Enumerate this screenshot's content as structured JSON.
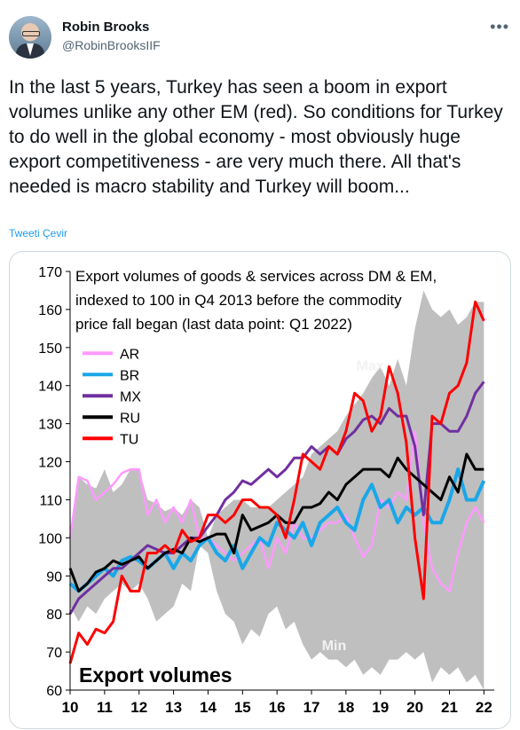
{
  "tweet": {
    "author_name": "Robin Brooks",
    "author_handle": "@RobinBrooksIIF",
    "more_icon": "more-icon",
    "text": "In the last 5 years, Turkey has seen a boom in export volumes unlike any other EM (red). So conditions for Turkey to do well in the global economy - most obviously huge export competitiveness - are very much there. All that's needed is macro stability and Turkey will boom...",
    "translate_label": "Tweeti Çevir"
  },
  "chart_data": {
    "type": "line",
    "title_lines": [
      "Export volumes of goods & services across DM & EM,",
      "indexed to 100 in Q4 2013  before the commodity",
      "price fall began (last data point: Q1 2022)"
    ],
    "bottom_label": "Export volumes",
    "band_labels": {
      "max": "Max",
      "min": "Min"
    },
    "ylim": [
      60,
      170
    ],
    "yticks": [
      60,
      70,
      80,
      90,
      100,
      110,
      120,
      130,
      140,
      150,
      160,
      170
    ],
    "xlim": [
      2010,
      2022.3
    ],
    "xticks": [
      {
        "v": 2010,
        "label": "10"
      },
      {
        "v": 2011,
        "label": "11"
      },
      {
        "v": 2012,
        "label": "12"
      },
      {
        "v": 2013,
        "label": "13"
      },
      {
        "v": 2014,
        "label": "14"
      },
      {
        "v": 2015,
        "label": "15"
      },
      {
        "v": 2016,
        "label": "16"
      },
      {
        "v": 2017,
        "label": "17"
      },
      {
        "v": 2018,
        "label": "18"
      },
      {
        "v": 2019,
        "label": "19"
      },
      {
        "v": 2020,
        "label": "20"
      },
      {
        "v": 2021,
        "label": "21"
      },
      {
        "v": 2022,
        "label": "22"
      }
    ],
    "colors": {
      "AR": "#ff99ff",
      "BR": "#1aa7e8",
      "MX": "#7030a0",
      "RU": "#000000",
      "TU": "#ff0000",
      "band": "#bfbfbf"
    },
    "band": {
      "x": [
        2010,
        2010.25,
        2010.5,
        2010.75,
        2011,
        2011.25,
        2011.5,
        2011.75,
        2012,
        2012.25,
        2012.5,
        2012.75,
        2013,
        2013.25,
        2013.5,
        2013.75,
        2014,
        2014.25,
        2014.5,
        2014.75,
        2015,
        2015.25,
        2015.5,
        2015.75,
        2016,
        2016.25,
        2016.5,
        2016.75,
        2017,
        2017.25,
        2017.5,
        2017.75,
        2018,
        2018.25,
        2018.5,
        2018.75,
        2019,
        2019.25,
        2019.5,
        2019.75,
        2020,
        2020.25,
        2020.5,
        2020.75,
        2021,
        2021.25,
        2021.5,
        2021.75,
        2022
      ],
      "max": [
        100,
        116,
        114,
        113,
        118,
        112,
        114,
        118,
        118,
        110,
        109,
        107,
        108,
        106,
        110,
        108,
        100,
        106,
        108,
        110,
        110,
        108,
        108,
        108,
        110,
        112,
        114,
        116,
        122,
        124,
        126,
        128,
        132,
        135,
        138,
        142,
        145,
        140,
        147,
        140,
        155,
        165,
        160,
        158,
        160,
        156,
        158,
        162,
        162
      ],
      "min": [
        82,
        78,
        82,
        80,
        84,
        86,
        88,
        86,
        88,
        84,
        78,
        80,
        82,
        88,
        86,
        98,
        96,
        86,
        80,
        78,
        72,
        76,
        74,
        80,
        82,
        76,
        78,
        72,
        68,
        70,
        68,
        68,
        66,
        68,
        64,
        66,
        64,
        68,
        68,
        70,
        68,
        70,
        62,
        66,
        64,
        66,
        62,
        64,
        60
      ]
    },
    "series": [
      {
        "name": "AR",
        "x": [
          2010,
          2010.25,
          2010.5,
          2010.75,
          2011,
          2011.25,
          2011.5,
          2011.75,
          2012,
          2012.25,
          2012.5,
          2012.75,
          2013,
          2013.25,
          2013.5,
          2013.75,
          2014,
          2014.25,
          2014.5,
          2014.75,
          2015,
          2015.25,
          2015.5,
          2015.75,
          2016,
          2016.25,
          2016.5,
          2016.75,
          2017,
          2017.25,
          2017.5,
          2017.75,
          2018,
          2018.25,
          2018.5,
          2018.75,
          2019,
          2019.25,
          2019.5,
          2019.75,
          2020,
          2020.25,
          2020.5,
          2020.75,
          2021,
          2021.25,
          2021.5,
          2021.75,
          2022
        ],
        "values": [
          100,
          116,
          115,
          110,
          112,
          114,
          117,
          118,
          118,
          106,
          110,
          104,
          108,
          104,
          110,
          100,
          100,
          98,
          96,
          94,
          96,
          98,
          100,
          92,
          100,
          96,
          104,
          100,
          100,
          102,
          104,
          104,
          106,
          100,
          95,
          98,
          110,
          108,
          112,
          110,
          128,
          104,
          92,
          88,
          86,
          96,
          104,
          108,
          104
        ]
      },
      {
        "name": "BR",
        "x": [
          2010,
          2010.25,
          2010.5,
          2010.75,
          2011,
          2011.25,
          2011.5,
          2011.75,
          2012,
          2012.25,
          2012.5,
          2012.75,
          2013,
          2013.25,
          2013.5,
          2013.75,
          2014,
          2014.25,
          2014.5,
          2014.75,
          2015,
          2015.25,
          2015.5,
          2015.75,
          2016,
          2016.25,
          2016.5,
          2016.75,
          2017,
          2017.25,
          2017.5,
          2017.75,
          2018,
          2018.25,
          2018.5,
          2018.75,
          2019,
          2019.25,
          2019.5,
          2019.75,
          2020,
          2020.25,
          2020.5,
          2020.75,
          2021,
          2021.25,
          2021.5,
          2021.75,
          2022
        ],
        "values": [
          88,
          86,
          88,
          90,
          92,
          90,
          94,
          95,
          94,
          92,
          94,
          96,
          92,
          96,
          94,
          98,
          100,
          96,
          94,
          98,
          92,
          96,
          100,
          98,
          104,
          102,
          100,
          104,
          98,
          104,
          106,
          108,
          104,
          102,
          110,
          114,
          108,
          110,
          104,
          108,
          106,
          108,
          104,
          104,
          110,
          118,
          110,
          110,
          115
        ]
      },
      {
        "name": "MX",
        "x": [
          2010,
          2010.25,
          2010.5,
          2010.75,
          2011,
          2011.25,
          2011.5,
          2011.75,
          2012,
          2012.25,
          2012.5,
          2012.75,
          2013,
          2013.25,
          2013.5,
          2013.75,
          2014,
          2014.25,
          2014.5,
          2014.75,
          2015,
          2015.25,
          2015.5,
          2015.75,
          2016,
          2016.25,
          2016.5,
          2016.75,
          2017,
          2017.25,
          2017.5,
          2017.75,
          2018,
          2018.25,
          2018.5,
          2018.75,
          2019,
          2019.25,
          2019.5,
          2019.75,
          2020,
          2020.25,
          2020.5,
          2020.75,
          2021,
          2021.25,
          2021.5,
          2021.75,
          2022
        ],
        "values": [
          80,
          84,
          86,
          88,
          90,
          92,
          92,
          94,
          96,
          98,
          97,
          96,
          96,
          98,
          100,
          100,
          103,
          106,
          110,
          112,
          115,
          114,
          116,
          118,
          116,
          118,
          121,
          121,
          124,
          122,
          124,
          122,
          126,
          128,
          131,
          132,
          130,
          134,
          132,
          132,
          124,
          106,
          130,
          130,
          128,
          128,
          132,
          138,
          141
        ]
      },
      {
        "name": "RU",
        "x": [
          2010,
          2010.25,
          2010.5,
          2010.75,
          2011,
          2011.25,
          2011.5,
          2011.75,
          2012,
          2012.25,
          2012.5,
          2012.75,
          2013,
          2013.25,
          2013.5,
          2013.75,
          2014,
          2014.25,
          2014.5,
          2014.75,
          2015,
          2015.25,
          2015.5,
          2015.75,
          2016,
          2016.25,
          2016.5,
          2016.75,
          2017,
          2017.25,
          2017.5,
          2017.75,
          2018,
          2018.25,
          2018.5,
          2018.75,
          2019,
          2019.25,
          2019.5,
          2019.75,
          2020,
          2020.25,
          2020.5,
          2020.75,
          2021,
          2021.25,
          2021.5,
          2021.75,
          2022
        ],
        "values": [
          92,
          86,
          88,
          91,
          92,
          94,
          93,
          94,
          95,
          92,
          94,
          96,
          97,
          96,
          100,
          99,
          100,
          101,
          101,
          96,
          106,
          102,
          103,
          104,
          106,
          104,
          104,
          108,
          108,
          109,
          112,
          110,
          114,
          116,
          118,
          118,
          118,
          116,
          121,
          118,
          116,
          114,
          112,
          110,
          116,
          112,
          122,
          118,
          118
        ]
      },
      {
        "name": "TU",
        "x": [
          2010,
          2010.25,
          2010.5,
          2010.75,
          2011,
          2011.25,
          2011.5,
          2011.75,
          2012,
          2012.25,
          2012.5,
          2012.75,
          2013,
          2013.25,
          2013.5,
          2013.75,
          2014,
          2014.25,
          2014.5,
          2014.75,
          2015,
          2015.25,
          2015.5,
          2015.75,
          2016,
          2016.25,
          2016.5,
          2016.75,
          2017,
          2017.25,
          2017.5,
          2017.75,
          2018,
          2018.25,
          2018.5,
          2018.75,
          2019,
          2019.25,
          2019.5,
          2019.75,
          2020,
          2020.25,
          2020.5,
          2020.75,
          2021,
          2021.25,
          2021.5,
          2021.75,
          2022
        ],
        "values": [
          67,
          75,
          72,
          76,
          75,
          78,
          90,
          86,
          86,
          96,
          96,
          98,
          96,
          102,
          99,
          100,
          106,
          106,
          104,
          106,
          110,
          110,
          108,
          108,
          106,
          100,
          110,
          122,
          120,
          118,
          124,
          122,
          128,
          138,
          136,
          128,
          132,
          145,
          138,
          125,
          100,
          84,
          132,
          130,
          138,
          140,
          146,
          162,
          157
        ]
      }
    ]
  }
}
